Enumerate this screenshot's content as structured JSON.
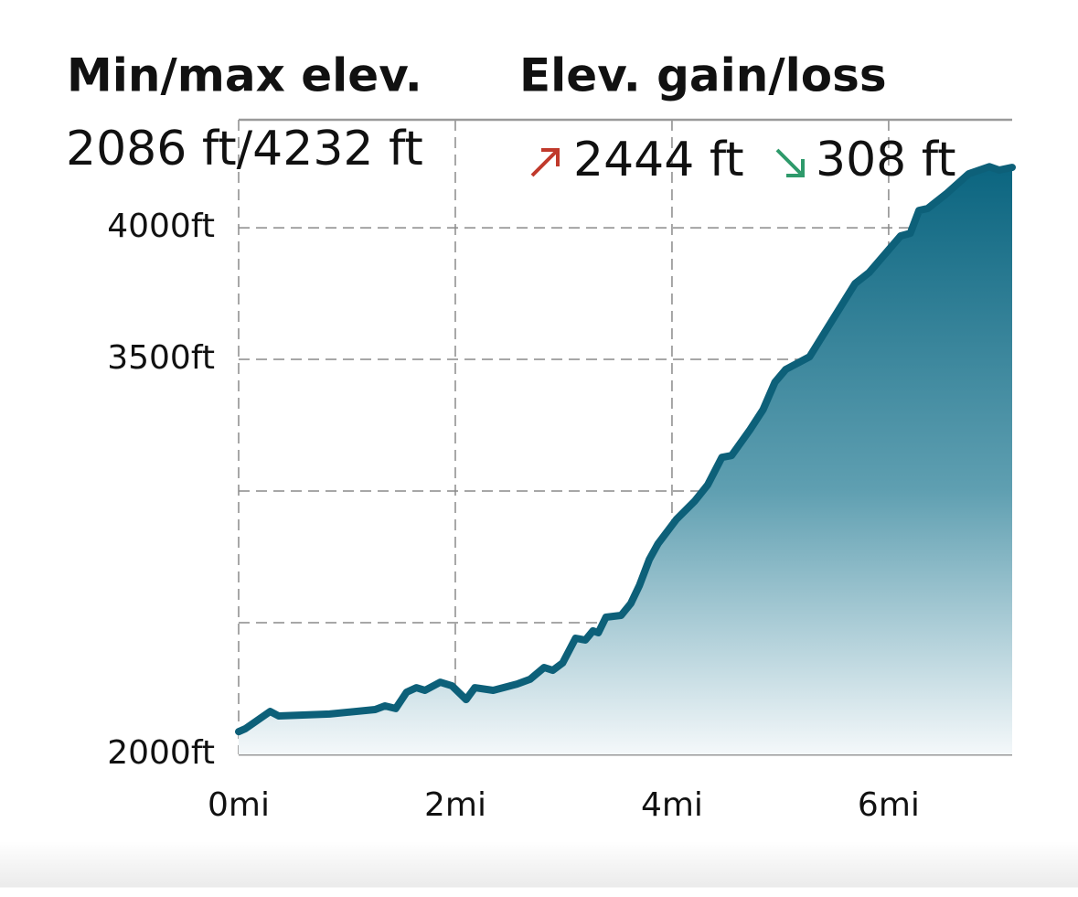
{
  "stats": {
    "minmax_label": "Min/max elev.",
    "minmax_value": "2086 ft/4232 ft",
    "gain_loss_label": "Elev. gain/loss",
    "gain_value": "2444 ft",
    "loss_value": "308 ft"
  },
  "chart_data": {
    "type": "area",
    "color": "#0d6079",
    "x": [
      0,
      0.06,
      0.29,
      0.37,
      0.84,
      1.26,
      1.35,
      1.45,
      1.55,
      1.64,
      1.72,
      1.86,
      1.97,
      2.1,
      2.18,
      2.35,
      2.57,
      2.69,
      2.82,
      2.9,
      2.99,
      3.11,
      3.2,
      3.27,
      3.32,
      3.39,
      3.53,
      3.62,
      3.7,
      3.79,
      3.87,
      4.04,
      4.21,
      4.33,
      4.46,
      4.55,
      4.72,
      4.84,
      4.95,
      5.05,
      5.27,
      5.48,
      5.69,
      5.82,
      6.11,
      6.2,
      6.28,
      6.36,
      6.53,
      6.74,
      6.93,
      7.02,
      7.14
    ],
    "values": [
      2086,
      2097,
      2163,
      2146,
      2153,
      2170,
      2184,
      2174,
      2236,
      2253,
      2243,
      2274,
      2260,
      2208,
      2253,
      2243,
      2267,
      2285,
      2330,
      2319,
      2347,
      2441,
      2434,
      2469,
      2462,
      2521,
      2528,
      2573,
      2642,
      2740,
      2799,
      2892,
      2962,
      3024,
      3128,
      3135,
      3233,
      3309,
      3413,
      3462,
      3510,
      3649,
      3788,
      3830,
      3969,
      3979,
      4066,
      4073,
      4128,
      4205,
      4232,
      4219,
      4229
    ],
    "xlim": [
      0,
      7.14
    ],
    "ylim": [
      2000,
      4410
    ],
    "xticks": [
      {
        "value": 0,
        "label": "0mi"
      },
      {
        "value": 2,
        "label": "2mi"
      },
      {
        "value": 4,
        "label": "4mi"
      },
      {
        "value": 6,
        "label": "6mi"
      }
    ],
    "yticks": [
      {
        "value": 2000,
        "label": "2000ft"
      },
      {
        "value": 2500,
        "label": null
      },
      {
        "value": 3000,
        "label": null
      },
      {
        "value": 3500,
        "label": "3500ft"
      },
      {
        "value": 4000,
        "label": "4000ft"
      }
    ],
    "grid": true
  }
}
